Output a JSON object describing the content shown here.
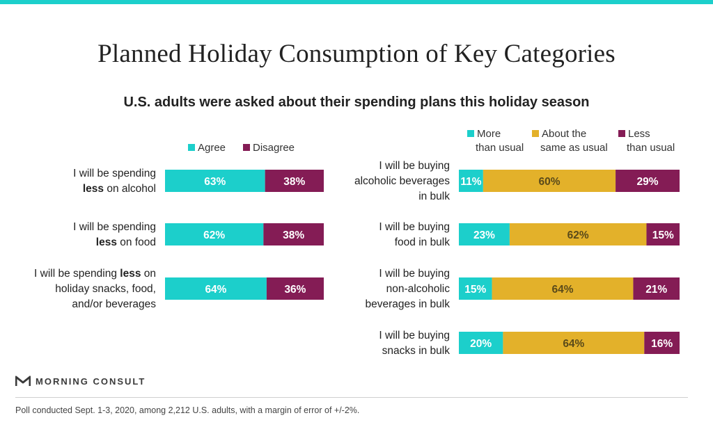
{
  "title": "Planned Holiday Consumption of Key Categories",
  "subtitle": "U.S. adults were asked about their spending plans this holiday season",
  "logo_text": "MORNING CONSULT",
  "note": "Poll conducted Sept. 1-3, 2020, among 2,212 U.S. adults, with a margin of error of +/-2%.",
  "colors": {
    "teal": "#1ccfcb",
    "gold": "#e3b12a",
    "maroon": "#841c55",
    "text": "#222222"
  },
  "chart_data": [
    {
      "type": "bar",
      "orientation": "horizontal",
      "stacked": true,
      "value_format": "percent",
      "xlim": [
        0,
        100
      ],
      "legend_position": "top",
      "categories": [
        [
          {
            "t": "I will be spending"
          },
          {
            "t": "less",
            "b": true
          },
          {
            "t": " on alcohol"
          }
        ],
        [
          {
            "t": "I will be spending"
          },
          {
            "t": "less",
            "b": true
          },
          {
            "t": " on food"
          }
        ],
        [
          {
            "t": "I will be spending "
          },
          {
            "t": "less",
            "b": true
          },
          {
            "t": " on"
          },
          {
            "t": "holiday snacks, food,"
          },
          {
            "t": "and/or beverages"
          }
        ]
      ],
      "category_lines": [
        [
          [
            0
          ],
          [
            1,
            2
          ]
        ],
        [
          [
            0
          ],
          [
            1,
            2
          ]
        ],
        [
          [
            0,
            1,
            2
          ],
          [
            3
          ],
          [
            4
          ]
        ]
      ],
      "series": [
        {
          "name": "Agree",
          "color": "#1ccfcb",
          "values": [
            63,
            62,
            64
          ]
        },
        {
          "name": "Disagree",
          "color": "#841c55",
          "values": [
            38,
            38,
            36
          ]
        }
      ]
    },
    {
      "type": "bar",
      "orientation": "horizontal",
      "stacked": true,
      "value_format": "percent",
      "xlim": [
        0,
        100
      ],
      "legend_position": "top",
      "categories": [
        [
          {
            "t": "I will be buying"
          },
          {
            "t": "alcoholic beverages"
          },
          {
            "t": "in bulk"
          }
        ],
        [
          {
            "t": "I will be buying"
          },
          {
            "t": "food in bulk"
          }
        ],
        [
          {
            "t": "I will be buying"
          },
          {
            "t": "non-alcoholic"
          },
          {
            "t": "beverages in bulk"
          }
        ],
        [
          {
            "t": "I will be buying"
          },
          {
            "t": "snacks in bulk"
          }
        ]
      ],
      "category_lines": [
        [
          [
            0
          ],
          [
            1
          ],
          [
            2
          ]
        ],
        [
          [
            0
          ],
          [
            1
          ]
        ],
        [
          [
            0
          ],
          [
            1
          ],
          [
            2
          ]
        ],
        [
          [
            0
          ],
          [
            1
          ]
        ]
      ],
      "series": [
        {
          "name": "More than usual",
          "name_lines": [
            "More",
            "than usual"
          ],
          "color": "#1ccfcb",
          "values": [
            11,
            23,
            15,
            20
          ]
        },
        {
          "name": "About the same as usual",
          "name_lines": [
            "About the",
            "same as usual"
          ],
          "color": "#e3b12a",
          "values": [
            60,
            62,
            64,
            64
          ]
        },
        {
          "name": "Less than usual",
          "name_lines": [
            "Less",
            "than usual"
          ],
          "color": "#841c55",
          "values": [
            29,
            15,
            21,
            16
          ]
        }
      ]
    }
  ]
}
